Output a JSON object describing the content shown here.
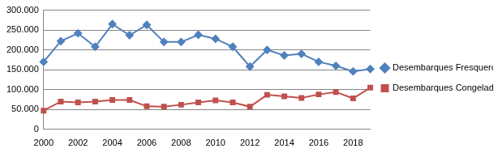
{
  "chart_data": {
    "type": "line",
    "categories": [
      "2000",
      null,
      "2002",
      null,
      "2004",
      null,
      "2006",
      null,
      "2008",
      null,
      "2010",
      null,
      "2012",
      null,
      "2014",
      null,
      "2016",
      null,
      "2018",
      null
    ],
    "series": [
      {
        "name": "Desembarques Fresqueros",
        "color": "#4f81bd",
        "marker": "diamond",
        "values": [
          170000,
          222000,
          242000,
          208000,
          265000,
          237000,
          263000,
          220000,
          220000,
          238000,
          228000,
          208000,
          158000,
          200000,
          186000,
          190000,
          170000,
          160000,
          146000,
          152000
        ]
      },
      {
        "name": "Desembarques Congeladores Arrastreros",
        "color": "#c0504d",
        "marker": "square",
        "values": [
          47000,
          70000,
          68000,
          70000,
          74000,
          74000,
          58000,
          57000,
          62000,
          68000,
          73000,
          68000,
          57000,
          87000,
          83000,
          79000,
          88000,
          94000,
          78000,
          105000
        ]
      }
    ],
    "ylim": [
      0,
      300000
    ],
    "yticks": [
      0,
      {
        "value": 50000,
        "label": "50.000"
      },
      {
        "value": 100000,
        "label": "100.000"
      },
      {
        "value": 150000,
        "label": "150.000"
      },
      {
        "value": 200000,
        "label": "200.000"
      },
      {
        "value": 250000,
        "label": "250.000"
      },
      {
        "value": 300000,
        "label": "300.000"
      }
    ],
    "grid": true,
    "legend": "right"
  }
}
